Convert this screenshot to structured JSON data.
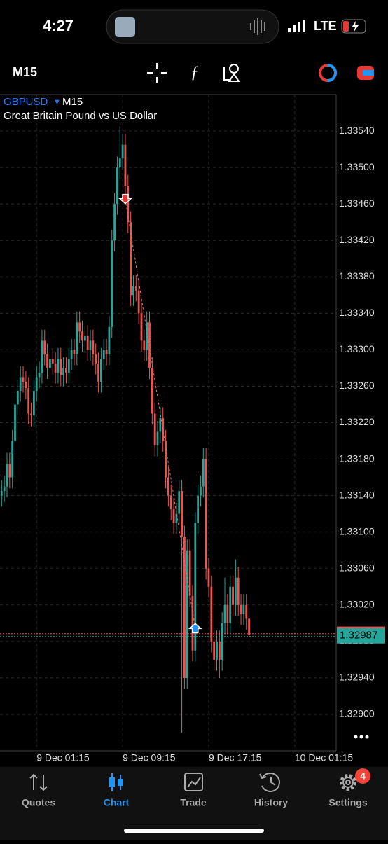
{
  "ui": {
    "status_time": "4:27",
    "network": "LTE",
    "timeframe": "M15",
    "symbol": "GBPUSD",
    "symbol_timeframe": "M15",
    "description": "Great Britain Pound vs US Dollar",
    "tabs": [
      "Quotes",
      "Chart",
      "Trade",
      "History",
      "Settings"
    ],
    "settings_badge": "4"
  },
  "chart_data": {
    "type": "candlestick",
    "x": [
      -2,
      -1.75,
      -1.5,
      -1.25,
      -1,
      -0.75,
      -0.5,
      -0.25,
      0,
      0.25,
      0.5,
      0.75,
      1,
      1.25,
      1.5,
      1.75,
      2,
      2.25,
      2.5,
      2.75,
      3,
      3.25,
      3.5,
      3.75,
      4,
      4.25,
      4.5,
      4.75,
      5,
      5.25,
      5.5,
      5.75,
      6,
      6.25,
      6.5,
      6.75,
      7,
      7.25,
      7.5,
      7.75,
      8,
      8.25,
      8.5,
      8.75,
      9,
      9.25,
      9.5,
      9.75,
      10,
      10.25,
      10.5,
      10.75,
      11,
      11.25,
      11.5,
      11.75,
      12,
      12.25,
      12.5,
      12.75,
      13,
      13.25,
      13.5,
      13.75,
      14,
      14.25,
      14.5,
      14.75,
      15,
      15.25,
      15.5,
      15.75,
      16,
      16.25,
      16.5,
      16.75,
      17,
      17.25,
      17.5,
      17.75,
      18,
      18.25,
      18.5,
      18.75,
      19,
      19.25,
      19.5,
      19.75,
      20,
      20.25,
      20.5,
      20.75,
      21
    ],
    "open": [
      1.3314,
      1.33145,
      1.3315,
      1.33175,
      1.3316,
      1.332,
      1.3324,
      1.33255,
      1.3327,
      1.33265,
      1.33258,
      1.3323,
      1.33228,
      1.33255,
      1.3327,
      1.33275,
      1.3331,
      1.33295,
      1.3328,
      1.3329,
      1.33285,
      1.33275,
      1.3329,
      1.33272,
      1.3328,
      1.33275,
      1.3329,
      1.333,
      1.33295,
      1.3333,
      1.3332,
      1.3331,
      1.33315,
      1.333,
      1.3331,
      1.33295,
      1.33285,
      1.33265,
      1.3329,
      1.333,
      1.33295,
      1.33325,
      1.3342,
      1.3346,
      1.335,
      1.3351,
      1.33525,
      1.3348,
      1.3344,
      1.3336,
      1.3337,
      1.33365,
      1.3334,
      1.3331,
      1.333,
      1.3333,
      1.3328,
      1.3323,
      1.33195,
      1.3321,
      1.33225,
      1.332,
      1.3316,
      1.3314,
      1.33125,
      1.3311,
      1.3312,
      1.33145,
      1.33095,
      1.3294,
      1.3308,
      1.3303,
      1.3297,
      1.3311,
      1.3314,
      1.3315,
      1.3318,
      1.3306,
      1.3304,
      1.3298,
      1.3296,
      1.3298,
      1.3296,
      1.33,
      1.3302,
      1.33,
      1.3304,
      1.3302,
      1.3305,
      1.3302,
      1.3301,
      1.3302,
      1.33005
    ],
    "high": [
      1.33157,
      1.33162,
      1.33187,
      1.33187,
      1.33212,
      1.33252,
      1.33267,
      1.33282,
      1.33282,
      1.33277,
      1.3327,
      1.33242,
      1.33267,
      1.33282,
      1.33287,
      1.33322,
      1.33322,
      1.33307,
      1.33302,
      1.33302,
      1.33297,
      1.33302,
      1.33302,
      1.33292,
      1.33292,
      1.33302,
      1.33312,
      1.33312,
      1.33342,
      1.33342,
      1.33332,
      1.33327,
      1.33327,
      1.33322,
      1.33322,
      1.33307,
      1.33297,
      1.33302,
      1.33312,
      1.33312,
      1.33337,
      1.33432,
      1.33472,
      1.33512,
      1.33545,
      1.33537,
      1.33537,
      1.33492,
      1.33452,
      1.33382,
      1.33382,
      1.33377,
      1.33352,
      1.33322,
      1.33342,
      1.33342,
      1.33292,
      1.33242,
      1.33222,
      1.33237,
      1.33237,
      1.33212,
      1.33172,
      1.33152,
      1.33137,
      1.33132,
      1.33157,
      1.33157,
      1.33107,
      1.33092,
      1.33092,
      1.33042,
      1.33122,
      1.33152,
      1.33162,
      1.33192,
      1.33192,
      1.33072,
      1.33052,
      1.32992,
      1.32992,
      1.32992,
      1.33012,
      1.3305,
      1.33032,
      1.33052,
      1.33052,
      1.3307,
      1.33062,
      1.33032,
      1.33032,
      1.33032,
      1.33017
    ],
    "low": [
      1.33128,
      1.33133,
      1.33138,
      1.33148,
      1.33148,
      1.33188,
      1.33228,
      1.33243,
      1.33253,
      1.33246,
      1.33218,
      1.33216,
      1.33216,
      1.33243,
      1.33258,
      1.33263,
      1.33283,
      1.33268,
      1.33268,
      1.33273,
      1.33263,
      1.33263,
      1.3326,
      1.3326,
      1.33263,
      1.33263,
      1.33278,
      1.33283,
      1.33283,
      1.33308,
      1.33298,
      1.33298,
      1.33288,
      1.33288,
      1.33283,
      1.33273,
      1.33253,
      1.33253,
      1.33278,
      1.33283,
      1.33283,
      1.33313,
      1.33408,
      1.33448,
      1.33488,
      1.33498,
      1.33468,
      1.33428,
      1.33348,
      1.33348,
      1.33353,
      1.33328,
      1.33298,
      1.33288,
      1.33288,
      1.33268,
      1.33218,
      1.33183,
      1.33183,
      1.33198,
      1.33188,
      1.33148,
      1.33128,
      1.33113,
      1.33098,
      1.33098,
      1.33108,
      1.3288,
      1.32928,
      1.32928,
      1.33018,
      1.32958,
      1.32958,
      1.33098,
      1.33128,
      1.33138,
      1.33048,
      1.33028,
      1.32968,
      1.32948,
      1.32948,
      1.3294,
      1.32948,
      1.32988,
      1.32988,
      1.32988,
      1.33008,
      1.33008,
      1.33008,
      1.32998,
      1.32998,
      1.32993,
      1.32975
    ],
    "close": [
      1.33145,
      1.3315,
      1.33175,
      1.3316,
      1.332,
      1.3324,
      1.33255,
      1.3327,
      1.33265,
      1.33258,
      1.3323,
      1.33228,
      1.33255,
      1.3327,
      1.33275,
      1.3331,
      1.33295,
      1.3328,
      1.3329,
      1.33285,
      1.33275,
      1.3329,
      1.33272,
      1.3328,
      1.33275,
      1.3329,
      1.333,
      1.33295,
      1.3333,
      1.3332,
      1.3331,
      1.33315,
      1.333,
      1.3331,
      1.33295,
      1.33285,
      1.33265,
      1.3329,
      1.333,
      1.33295,
      1.33325,
      1.3342,
      1.3346,
      1.335,
      1.3351,
      1.33525,
      1.3348,
      1.3344,
      1.3336,
      1.3337,
      1.33365,
      1.3334,
      1.3331,
      1.333,
      1.3333,
      1.3328,
      1.3323,
      1.33195,
      1.3321,
      1.33225,
      1.332,
      1.3316,
      1.3314,
      1.33125,
      1.3311,
      1.3312,
      1.33145,
      1.33095,
      1.3294,
      1.3308,
      1.3303,
      1.3297,
      1.3311,
      1.3314,
      1.3315,
      1.3318,
      1.3306,
      1.3304,
      1.3298,
      1.3296,
      1.3298,
      1.3296,
      1.33,
      1.3302,
      1.33,
      1.3304,
      1.3302,
      1.3305,
      1.3302,
      1.3301,
      1.3302,
      1.33005,
      1.32987
    ],
    "up_color": "#26a69a",
    "down_color": "#ef5350",
    "xlim": [
      -2.15,
      29.1
    ],
    "xticks": [
      {
        "value": 1.25,
        "label": "9 Dec 01:15"
      },
      {
        "value": 9.25,
        "label": "9 Dec 09:15"
      },
      {
        "value": 17.25,
        "label": "9 Dec 17:15"
      },
      {
        "value": 25.25,
        "label": "10 Dec 01:15"
      }
    ],
    "ylim": [
      1.3286,
      1.3358
    ],
    "yticks": [
      {
        "value": 1.3354,
        "label": "1.33540"
      },
      {
        "value": 1.335,
        "label": "1.33500"
      },
      {
        "value": 1.3346,
        "label": "1.33460"
      },
      {
        "value": 1.3342,
        "label": "1.33420"
      },
      {
        "value": 1.3338,
        "label": "1.33380"
      },
      {
        "value": 1.3334,
        "label": "1.33340"
      },
      {
        "value": 1.333,
        "label": "1.33300"
      },
      {
        "value": 1.3326,
        "label": "1.33260"
      },
      {
        "value": 1.3322,
        "label": "1.33220"
      },
      {
        "value": 1.3318,
        "label": "1.33180"
      },
      {
        "value": 1.3314,
        "label": "1.33140"
      },
      {
        "value": 1.331,
        "label": "1.33100"
      },
      {
        "value": 1.3306,
        "label": "1.33060"
      },
      {
        "value": 1.3302,
        "label": "1.33020"
      },
      {
        "value": 1.3298,
        "label": "1.32980"
      },
      {
        "value": 1.3294,
        "label": "1.32940"
      },
      {
        "value": 1.329,
        "label": "1.32900"
      }
    ],
    "grid": true,
    "last_price": 1.32987,
    "markers": [
      {
        "x": 9.5,
        "price": 1.33465,
        "direction": "down",
        "color": "#e53935"
      },
      {
        "x": 16,
        "price": 1.32995,
        "direction": "up",
        "color": "#2196f3"
      }
    ]
  }
}
